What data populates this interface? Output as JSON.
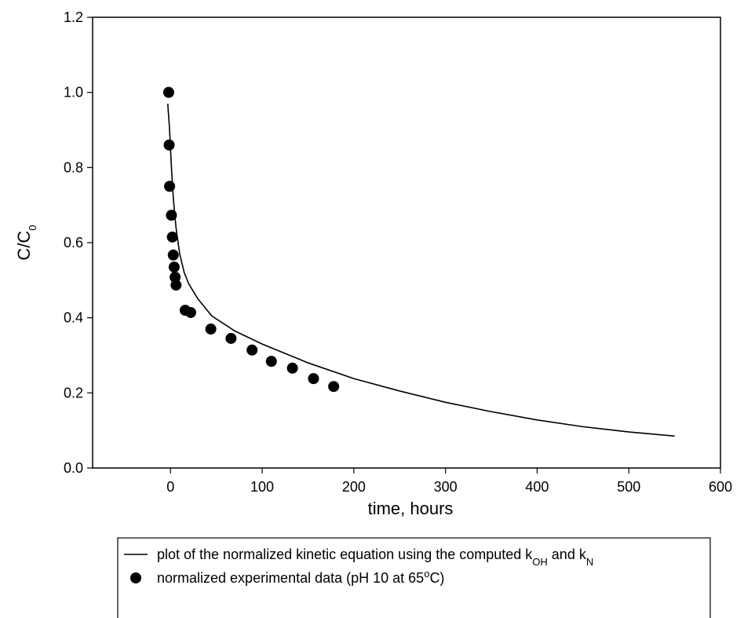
{
  "chart_data": {
    "type": "scatter-line",
    "x_label": "time, hours",
    "y_label": [
      {
        "text": "C/C"
      },
      {
        "text": "0",
        "style": "sub"
      }
    ],
    "xlim": [
      -85,
      600
    ],
    "xticks": [
      0,
      100,
      200,
      300,
      400,
      500,
      600
    ],
    "ylim": [
      0,
      1.2
    ],
    "yticks": [
      {
        "value": 0,
        "label": "0.0"
      },
      0.2,
      0.4,
      0.6,
      0.8,
      {
        "value": 1,
        "label": "1.0"
      },
      {
        "value": 1.2,
        "label": "1.2"
      }
    ],
    "series": [
      {
        "name": [
          {
            "text": "plot of the normalized kinetic equation using the computed k"
          },
          {
            "text": "OH",
            "style": "sub"
          },
          {
            "text": " and k"
          },
          {
            "text": "N",
            "style": "sub"
          }
        ],
        "kind": "line",
        "color": "#000000",
        "x": [
          -3,
          -1,
          1,
          3,
          6,
          10,
          15,
          20,
          30,
          45,
          70,
          100,
          150,
          200,
          250,
          300,
          350,
          400,
          450,
          500,
          550
        ],
        "values": [
          0.97,
          0.9,
          0.8,
          0.72,
          0.64,
          0.57,
          0.52,
          0.49,
          0.45,
          0.405,
          0.365,
          0.33,
          0.28,
          0.238,
          0.205,
          0.175,
          0.15,
          0.128,
          0.11,
          0.096,
          0.085
        ]
      },
      {
        "name": [
          {
            "text": "normalized experimental data (pH 10 at 65"
          },
          {
            "text": "o",
            "style": "sup"
          },
          {
            "text": "C)"
          }
        ],
        "kind": "points",
        "color": "#000000",
        "x": [
          -2,
          -1.5,
          -1,
          1,
          2,
          3,
          4,
          5,
          6,
          16,
          22,
          44,
          66,
          89,
          110,
          133,
          156,
          178
        ],
        "values": [
          1.0,
          0.86,
          0.75,
          0.673,
          0.615,
          0.567,
          0.535,
          0.508,
          0.487,
          0.42,
          0.414,
          0.37,
          0.345,
          0.314,
          0.284,
          0.266,
          0.238,
          0.217
        ]
      }
    ]
  }
}
